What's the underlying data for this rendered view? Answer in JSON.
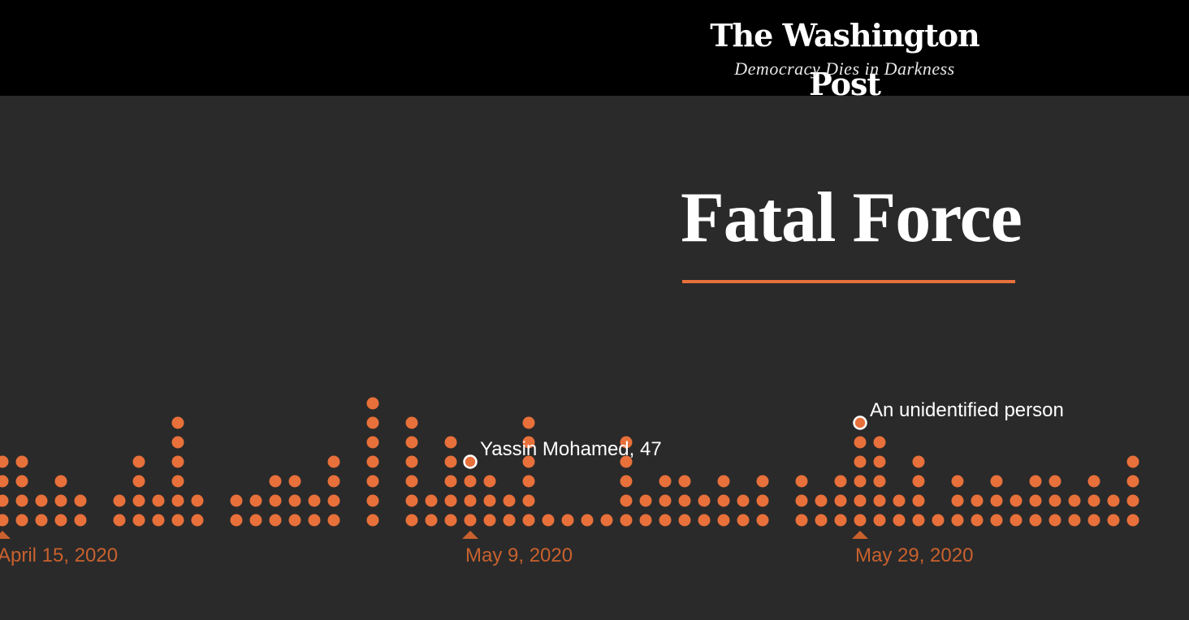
{
  "masthead": {
    "logo_text": "The Washington Post",
    "tagline": "Democracy Dies in Darkness"
  },
  "title": "Fatal Force",
  "colors": {
    "background": "#2a2a2a",
    "masthead": "#000000",
    "dot": "#e8703a",
    "axis_label": "#c9612e",
    "text": "#ffffff"
  },
  "chart_data": {
    "type": "scatter",
    "description_of_encoding": "dot stack per day",
    "x_start": "2020-04-15",
    "counts": [
      4,
      4,
      2,
      3,
      2,
      0,
      2,
      4,
      2,
      6,
      2,
      0,
      2,
      2,
      3,
      3,
      2,
      4,
      0,
      7,
      0,
      6,
      2,
      5,
      3,
      3,
      2,
      6,
      1,
      1,
      1,
      1,
      5,
      2,
      3,
      3,
      2,
      3,
      2,
      3,
      0,
      3,
      2,
      3,
      5,
      5,
      2,
      4,
      1,
      3,
      2,
      3,
      2,
      3,
      3,
      2,
      3,
      2,
      4
    ],
    "axis_labels": [
      {
        "index": 0,
        "text": "April 15, 2020"
      },
      {
        "index": 24,
        "text": "May 9, 2020"
      },
      {
        "index": 44,
        "text": "May 29, 2020"
      }
    ],
    "annotations": [
      {
        "index": 24,
        "text": "Yassin Mohamed, 47"
      },
      {
        "index": 44,
        "text": "An unidentified person"
      }
    ]
  }
}
